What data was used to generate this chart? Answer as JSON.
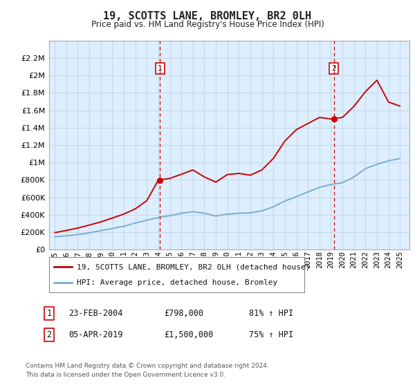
{
  "title": "19, SCOTTS LANE, BROMLEY, BR2 0LH",
  "subtitle": "Price paid vs. HM Land Registry's House Price Index (HPI)",
  "sale1_date": "23-FEB-2004",
  "sale1_price": 798000,
  "sale1_price_str": "£798,000",
  "sale1_hpi": "81% ↑ HPI",
  "sale1_year": 2004.15,
  "sale2_date": "05-APR-2019",
  "sale2_price": 1500000,
  "sale2_price_str": "£1,500,000",
  "sale2_hpi": "75% ↑ HPI",
  "sale2_year": 2019.25,
  "legend_line1": "19, SCOTTS LANE, BROMLEY, BR2 0LH (detached house)",
  "legend_line2": "HPI: Average price, detached house, Bromley",
  "footnote1": "Contains HM Land Registry data © Crown copyright and database right 2024.",
  "footnote2": "This data is licensed under the Open Government Licence v3.0.",
  "red_color": "#cc0000",
  "blue_color": "#7aadd4",
  "plot_bg_color": "#ddeeff",
  "grid_color": "#c8d8e8",
  "ylim": [
    0,
    2400000
  ],
  "yticks": [
    0,
    200000,
    400000,
    600000,
    800000,
    1000000,
    1200000,
    1400000,
    1600000,
    1800000,
    2000000,
    2200000
  ],
  "xlim": [
    1994.5,
    2025.8
  ],
  "xticks": [
    1995,
    1996,
    1997,
    1998,
    1999,
    2000,
    2001,
    2002,
    2003,
    2004,
    2005,
    2006,
    2007,
    2008,
    2009,
    2010,
    2011,
    2012,
    2013,
    2014,
    2015,
    2016,
    2017,
    2018,
    2019,
    2020,
    2021,
    2022,
    2023,
    2024,
    2025
  ],
  "hpi_years": [
    1995,
    1996,
    1997,
    1998,
    1999,
    2000,
    2001,
    2002,
    2003,
    2004,
    2005,
    2006,
    2007,
    2008,
    2009,
    2010,
    2011,
    2012,
    2013,
    2014,
    2015,
    2016,
    2017,
    2018,
    2019,
    2020,
    2021,
    2022,
    2023,
    2024,
    2025
  ],
  "hpi_values": [
    148000,
    158000,
    172000,
    192000,
    218000,
    242000,
    268000,
    305000,
    338000,
    368000,
    390000,
    418000,
    435000,
    418000,
    385000,
    408000,
    418000,
    422000,
    445000,
    492000,
    558000,
    608000,
    662000,
    715000,
    748000,
    768000,
    835000,
    930000,
    980000,
    1020000,
    1045000
  ],
  "prop_years": [
    1995,
    1996,
    1997,
    1998,
    1999,
    2000,
    2001,
    2002,
    2003,
    2004,
    2005,
    2006,
    2007,
    2008,
    2009,
    2010,
    2011,
    2012,
    2013,
    2014,
    2015,
    2016,
    2017,
    2018,
    2019,
    2020,
    2021,
    2022,
    2023,
    2024,
    2025
  ],
  "prop_values": [
    195000,
    220000,
    248000,
    282000,
    318000,
    362000,
    408000,
    468000,
    562000,
    798000,
    818000,
    865000,
    915000,
    835000,
    775000,
    862000,
    875000,
    855000,
    915000,
    1048000,
    1248000,
    1378000,
    1448000,
    1518000,
    1500000,
    1518000,
    1645000,
    1815000,
    1945000,
    1695000,
    1648000
  ]
}
